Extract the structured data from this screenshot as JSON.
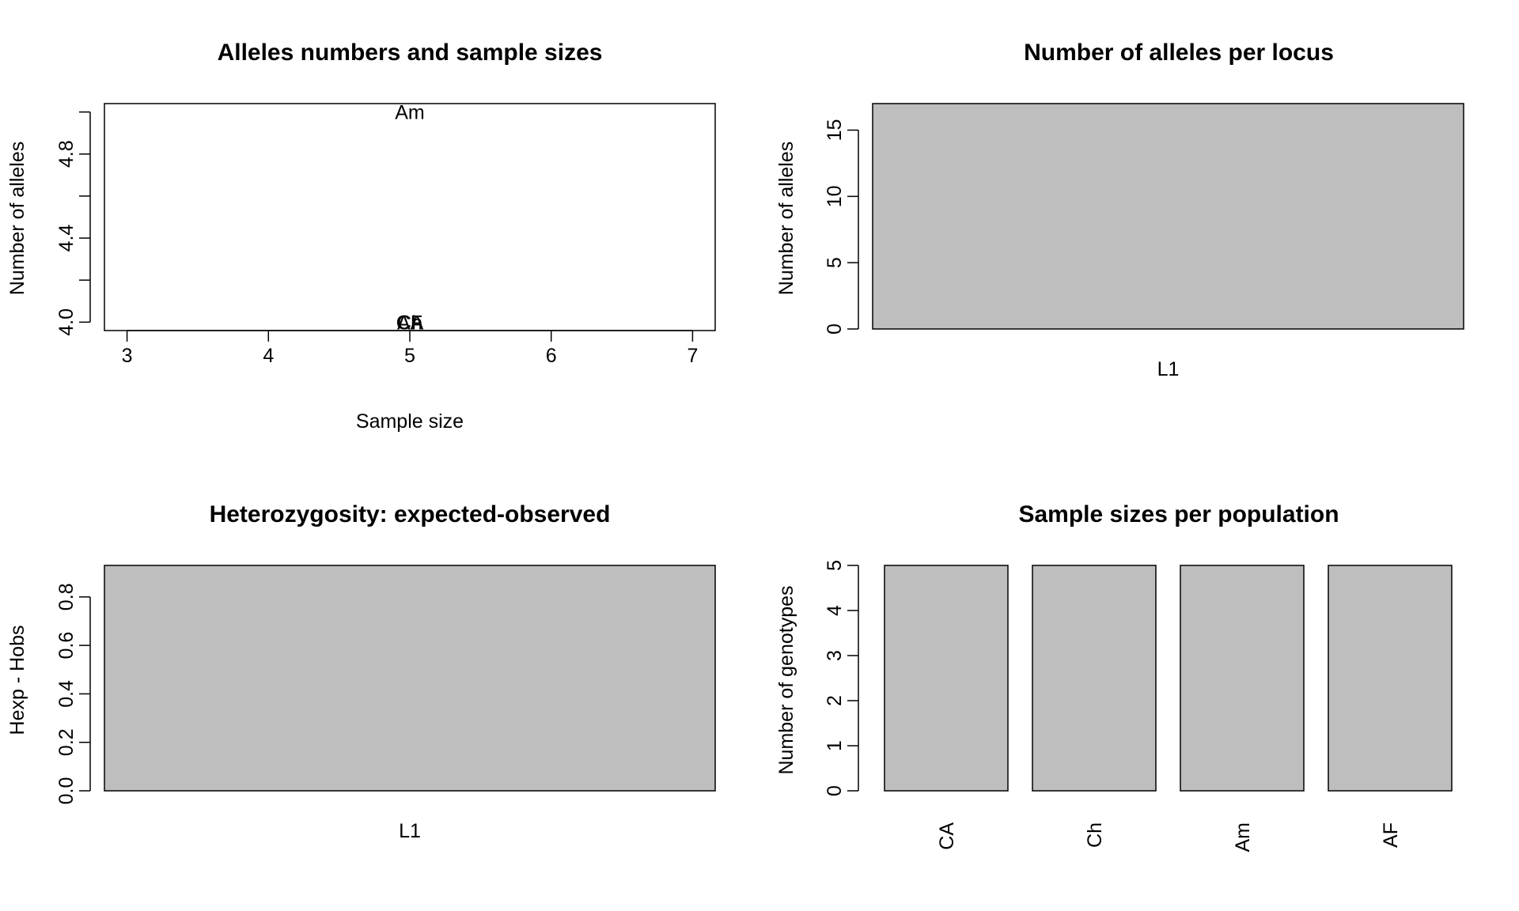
{
  "colors": {
    "bar_fill": "#bebebe",
    "line": "#000000",
    "background": "#ffffff"
  },
  "chart_data": [
    {
      "type": "scatter",
      "title": "Alleles numbers and sample sizes",
      "xlabel": "Sample size",
      "ylabel": "Number of alleles",
      "xlim": [
        2.84,
        7.16
      ],
      "ylim": [
        3.96,
        5.04
      ],
      "xticks": [
        "3",
        "4",
        "5",
        "6",
        "7"
      ],
      "yticks": [
        "4.0",
        "4.4",
        "4.8"
      ],
      "points": [
        {
          "label": "CA",
          "x": 5,
          "y": 4
        },
        {
          "label": "Ch",
          "x": 5,
          "y": 4
        },
        {
          "label": "Am",
          "x": 5,
          "y": 5
        },
        {
          "label": "AF",
          "x": 5,
          "y": 4
        }
      ],
      "grid": false
    },
    {
      "type": "bar",
      "title": "Number of alleles per locus",
      "xlabel": "",
      "ylabel": "Number of alleles",
      "categories": [
        "L1"
      ],
      "values": [
        17
      ],
      "ylim": [
        0,
        17
      ],
      "yticks": [
        "0",
        "5",
        "10",
        "15"
      ],
      "grid": false
    },
    {
      "type": "bar",
      "title": "Heterozygosity: expected-observed",
      "xlabel": "",
      "ylabel": "Hexp - Hobs",
      "categories": [
        "L1"
      ],
      "values": [
        0.93
      ],
      "ylim": [
        0,
        0.93
      ],
      "yticks": [
        "0.0",
        "0.2",
        "0.4",
        "0.6",
        "0.8"
      ],
      "grid": false
    },
    {
      "type": "bar",
      "title": "Sample sizes per population",
      "xlabel": "",
      "ylabel": "Number of genotypes",
      "categories": [
        "CA",
        "Ch",
        "Am",
        "AF"
      ],
      "values": [
        5,
        5,
        5,
        5
      ],
      "ylim": [
        0,
        5
      ],
      "yticks": [
        "0",
        "1",
        "2",
        "3",
        "4",
        "5"
      ],
      "category_labels_rotated": true,
      "grid": false
    }
  ]
}
